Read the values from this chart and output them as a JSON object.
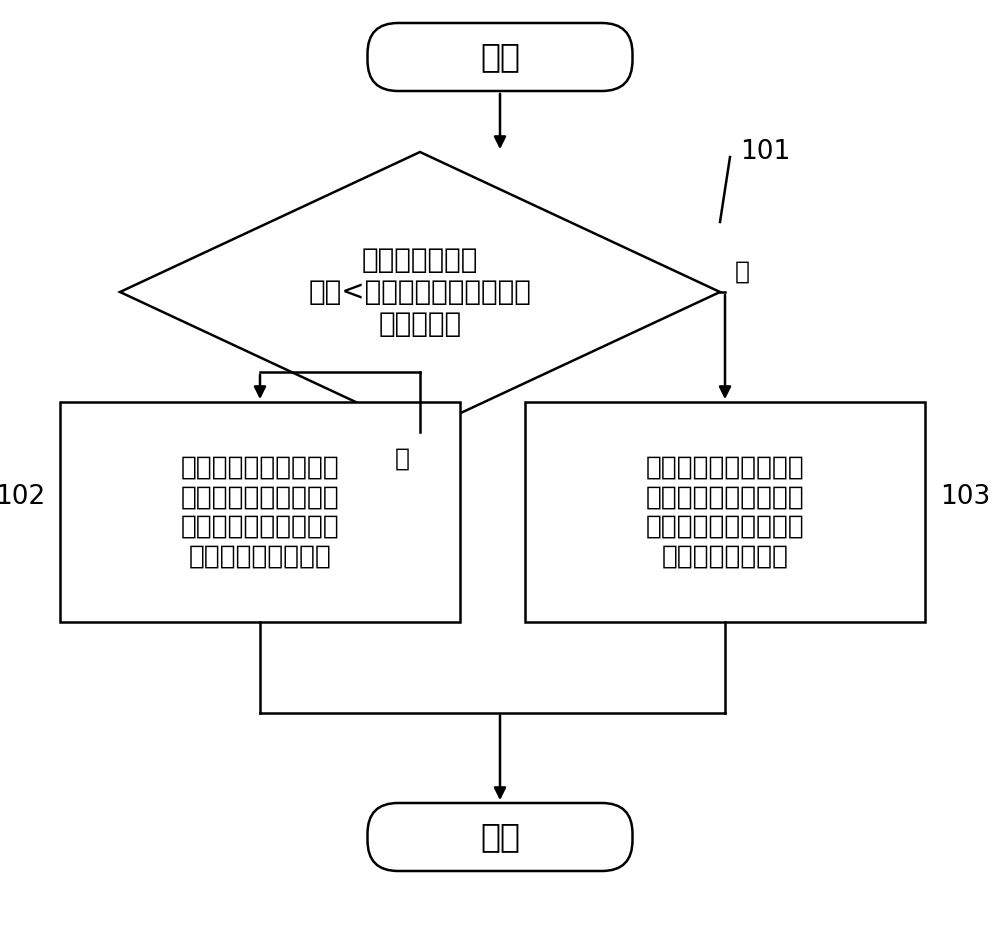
{
  "background_color": "#ffffff",
  "start_text": "开始",
  "end_text": "结束",
  "diamond_line1": "电网调度需求功",
  "diamond_line2": "率量<所有电化学储能电站额",
  "diamond_line3": "定容量之和",
  "box_left_line1": "利用所述电化学储能电",
  "box_left_line2": "站参与电网调度的综合",
  "box_left_line3": "评价系数确定各电化学",
  "box_left_line4": "储能电站分配的功率",
  "box_right_line1": "利用电化学储能电站的",
  "box_right_line2": "额定功率和电网调度需",
  "box_right_line3": "求功率量确定电化学储",
  "box_right_line4": "能电站分配的功率",
  "label_101": "101",
  "label_102": "102",
  "label_103": "103",
  "label_yes": "是",
  "label_no": "否",
  "line_color": "#000000",
  "shape_edge_color": "#000000",
  "shape_fill_color": "#ffffff"
}
